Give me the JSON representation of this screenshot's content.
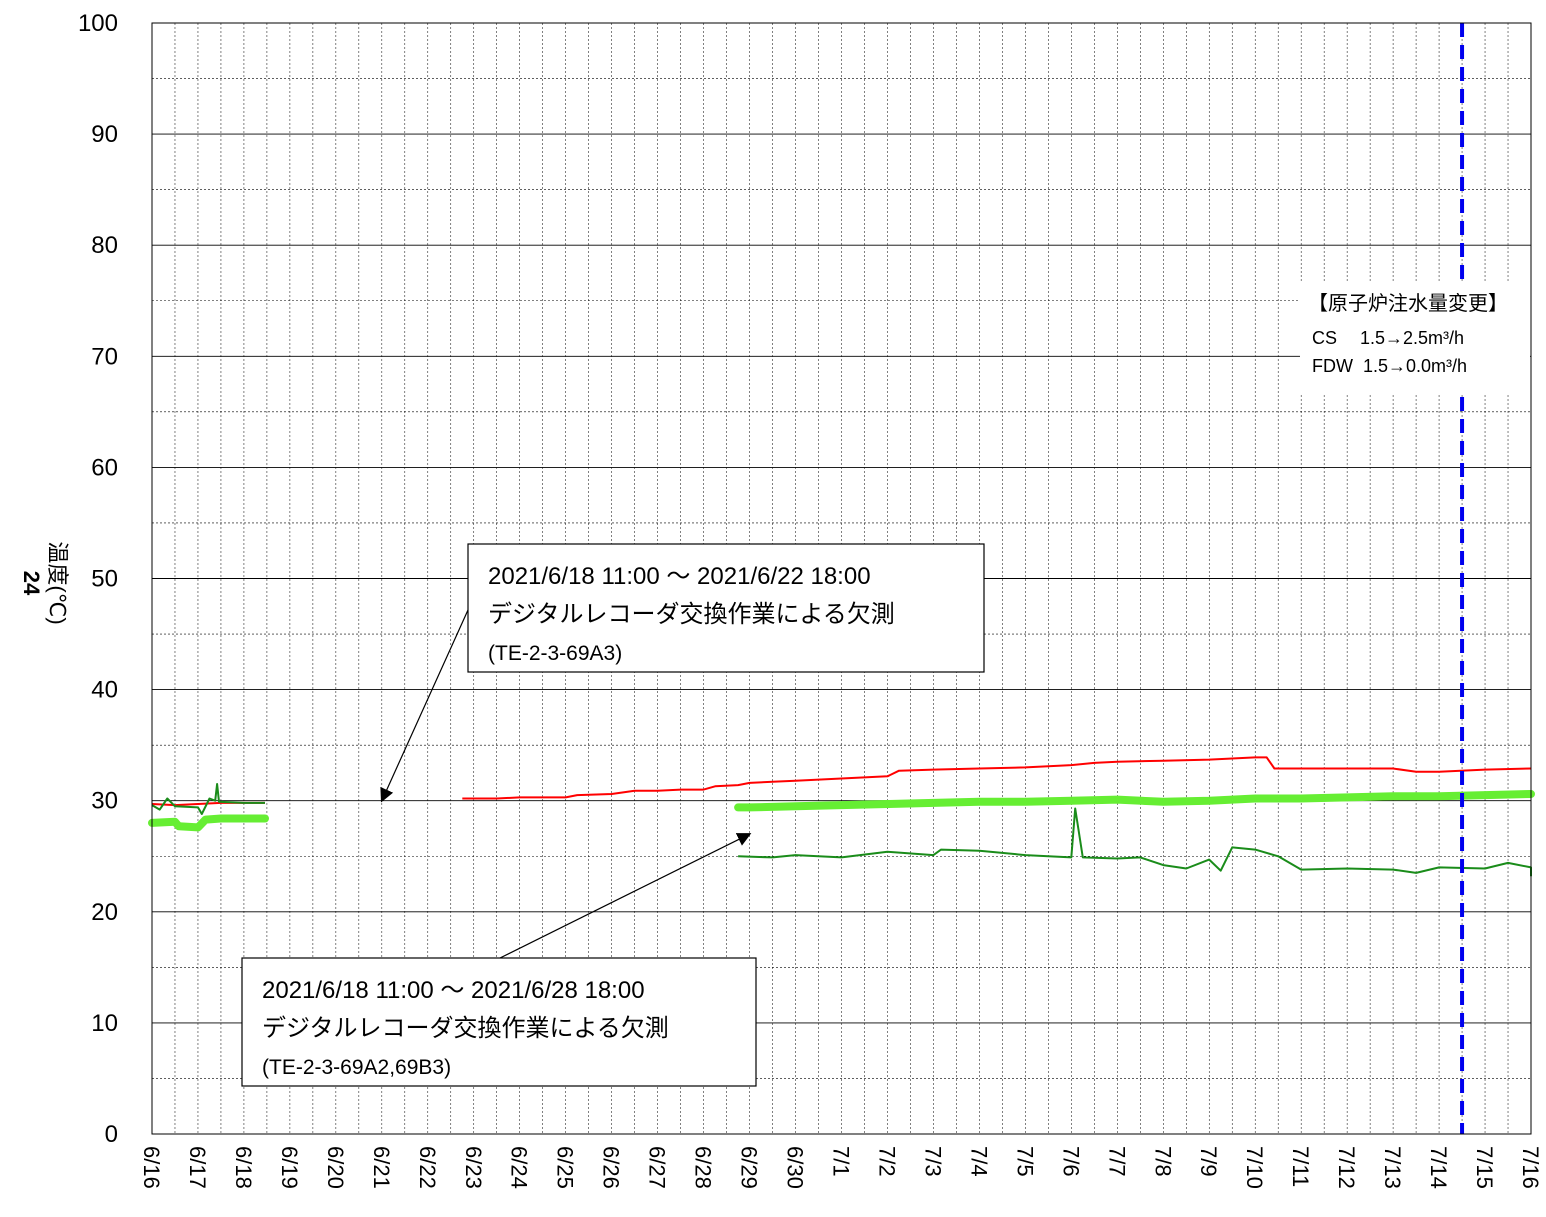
{
  "chart_data": {
    "type": "line",
    "title": "",
    "ylabel": "温度(℃)",
    "ylabel_prefix": "24",
    "ylim": [
      0,
      100
    ],
    "y_ticks": [
      0,
      10,
      20,
      30,
      40,
      50,
      60,
      70,
      80,
      90,
      100
    ],
    "y_minor_step": 5,
    "x_start": "6/16",
    "x_end": "7/16",
    "x_ticks": [
      "6/16",
      "6/17",
      "6/18",
      "6/19",
      "6/20",
      "6/21",
      "6/22",
      "6/23",
      "6/24",
      "6/25",
      "6/26",
      "6/27",
      "6/28",
      "6/29",
      "6/30",
      "7/1",
      "7/2",
      "7/3",
      "7/4",
      "7/5",
      "7/6",
      "7/7",
      "7/8",
      "7/9",
      "7/10",
      "7/11",
      "7/12",
      "7/13",
      "7/14",
      "7/15",
      "7/16"
    ],
    "grid": true,
    "legend": "none",
    "series": [
      {
        "color": "#ff0000",
        "width": 2,
        "segments": [
          [
            [
              "6/16",
              29.7
            ],
            [
              "6/16 12:00",
              29.6
            ],
            [
              "6/17",
              29.7
            ],
            [
              "6/17 12:00",
              29.8
            ],
            [
              "6/18",
              29.8
            ],
            [
              "6/18 11:00",
              29.8
            ]
          ],
          [
            [
              "6/22 18:00",
              30.2
            ],
            [
              "6/23 12:00",
              30.2
            ],
            [
              "6/24",
              30.3
            ],
            [
              "6/25",
              30.3
            ],
            [
              "6/25 06:00",
              30.5
            ],
            [
              "6/26",
              30.6
            ],
            [
              "6/26 12:00",
              30.9
            ],
            [
              "6/27",
              30.9
            ],
            [
              "6/27 12:00",
              31.0
            ],
            [
              "6/28",
              31.0
            ],
            [
              "6/28 06:00",
              31.3
            ],
            [
              "6/28 18:00",
              31.4
            ],
            [
              "6/29",
              31.6
            ],
            [
              "6/29 12:00",
              31.7
            ],
            [
              "6/30",
              31.8
            ],
            [
              "6/30 12:00",
              31.9
            ],
            [
              "7/1",
              32.0
            ],
            [
              "7/1 12:00",
              32.1
            ],
            [
              "7/2",
              32.2
            ],
            [
              "7/2 06:00",
              32.7
            ],
            [
              "7/3",
              32.8
            ],
            [
              "7/4",
              32.9
            ],
            [
              "7/5",
              33.0
            ],
            [
              "7/6",
              33.2
            ],
            [
              "7/6 12:00",
              33.4
            ],
            [
              "7/7",
              33.5
            ],
            [
              "7/8",
              33.6
            ],
            [
              "7/9",
              33.7
            ],
            [
              "7/10",
              33.9
            ],
            [
              "7/10 06:00",
              33.9
            ],
            [
              "7/10 10:00",
              32.9
            ],
            [
              "7/11",
              32.9
            ],
            [
              "7/12",
              32.9
            ],
            [
              "7/13",
              32.9
            ],
            [
              "7/13 12:00",
              32.6
            ],
            [
              "7/14",
              32.6
            ],
            [
              "7/15",
              32.8
            ],
            [
              "7/16",
              32.9
            ]
          ]
        ]
      },
      {
        "color": "#66ee33",
        "width": 8,
        "segments": [
          [
            [
              "6/16",
              28.0
            ],
            [
              "6/16 12:00",
              28.1
            ],
            [
              "6/16 14:00",
              27.7
            ],
            [
              "6/17",
              27.6
            ],
            [
              "6/17 04:00",
              28.3
            ],
            [
              "6/17 12:00",
              28.4
            ],
            [
              "6/18",
              28.4
            ],
            [
              "6/18 11:00",
              28.4
            ]
          ],
          [
            [
              "6/28 18:00",
              29.4
            ],
            [
              "6/29",
              29.4
            ],
            [
              "6/30",
              29.5
            ],
            [
              "7/1",
              29.6
            ],
            [
              "7/2",
              29.7
            ],
            [
              "7/3",
              29.8
            ],
            [
              "7/4",
              29.9
            ],
            [
              "7/5",
              29.9
            ],
            [
              "7/6",
              30.0
            ],
            [
              "7/7",
              30.1
            ],
            [
              "7/8",
              29.9
            ],
            [
              "7/9",
              30.0
            ],
            [
              "7/10",
              30.2
            ],
            [
              "7/11",
              30.2
            ],
            [
              "7/12",
              30.3
            ],
            [
              "7/13",
              30.4
            ],
            [
              "7/14",
              30.4
            ],
            [
              "7/15",
              30.5
            ],
            [
              "7/16",
              30.6
            ]
          ]
        ]
      },
      {
        "color": "#1a8c1a",
        "width": 2,
        "segments": [
          [
            [
              "6/16",
              29.6
            ],
            [
              "6/16 04:00",
              29.2
            ],
            [
              "6/16 08:00",
              30.2
            ],
            [
              "6/16 12:00",
              29.5
            ],
            [
              "6/17",
              29.4
            ],
            [
              "6/17 02:00",
              28.8
            ],
            [
              "6/17 06:00",
              30.2
            ],
            [
              "6/17 09:00",
              30.0
            ],
            [
              "6/17 10:00",
              31.5
            ],
            [
              "6/17 11:00",
              29.9
            ],
            [
              "6/18",
              29.8
            ],
            [
              "6/18 11:00",
              29.8
            ]
          ],
          [
            [
              "6/28 18:00",
              25.0
            ],
            [
              "6/29 12:00",
              24.9
            ],
            [
              "6/30",
              25.1
            ],
            [
              "7/1",
              24.9
            ],
            [
              "7/2",
              25.4
            ],
            [
              "7/3",
              25.1
            ],
            [
              "7/3 04:00",
              25.6
            ],
            [
              "7/4",
              25.5
            ],
            [
              "7/5",
              25.1
            ],
            [
              "7/6",
              24.9
            ],
            [
              "7/6 02:00",
              29.3
            ],
            [
              "7/6 06:00",
              24.9
            ],
            [
              "7/7",
              24.8
            ],
            [
              "7/7 12:00",
              24.9
            ],
            [
              "7/8",
              24.2
            ],
            [
              "7/8 12:00",
              23.9
            ],
            [
              "7/9",
              24.7
            ],
            [
              "7/9 06:00",
              23.7
            ],
            [
              "7/9 12:00",
              25.8
            ],
            [
              "7/10",
              25.6
            ],
            [
              "7/10 12:00",
              25.0
            ],
            [
              "7/11",
              23.8
            ],
            [
              "7/12",
              23.9
            ],
            [
              "7/13",
              23.8
            ],
            [
              "7/13 12:00",
              23.5
            ],
            [
              "7/14",
              24.0
            ],
            [
              "7/15",
              23.9
            ],
            [
              "7/15 12:00",
              24.4
            ],
            [
              "7/16",
              24.0
            ],
            [
              "7/16",
              23.2
            ]
          ]
        ]
      }
    ],
    "event_line": {
      "x": "7/14 12:00",
      "color": "#0000ee",
      "title": "【原子炉注水量変更】",
      "lines": [
        "CS　 1.5→2.5m³/h",
        "FDW  1.5→0.0m³/h"
      ]
    },
    "annotations": [
      {
        "lines": [
          "2021/6/18 11:00 ～ 2021/6/22 18:00",
          "デジタルレコーダ交換作業による欠測",
          "(TE-2-3-69A3)"
        ],
        "arrow_to": [
          "6/21",
          30
        ]
      },
      {
        "lines": [
          "2021/6/18 11:00 ～ 2021/6/28 18:00",
          "デジタルレコーダ交換作業による欠測",
          "(TE-2-3-69A2,69B3)"
        ],
        "arrow_to": [
          "6/29",
          27
        ]
      }
    ]
  }
}
